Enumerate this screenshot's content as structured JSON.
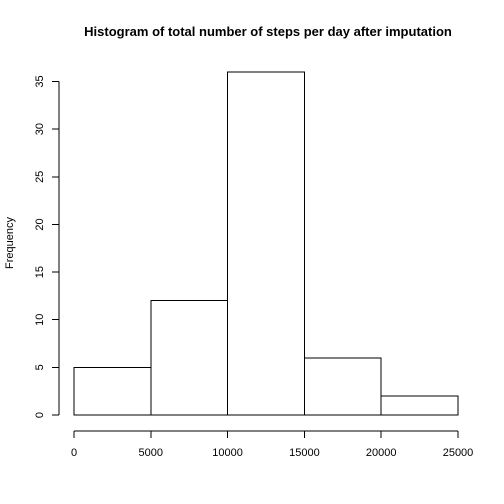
{
  "chart_data": {
    "type": "bar",
    "title": "Histogram of total number of steps per day after imputation",
    "xlabel": "",
    "ylabel": "Frequency",
    "bins": [
      {
        "from": 0,
        "to": 5000,
        "count": 5
      },
      {
        "from": 5000,
        "to": 10000,
        "count": 12
      },
      {
        "from": 10000,
        "to": 15000,
        "count": 36
      },
      {
        "from": 15000,
        "to": 20000,
        "count": 6
      },
      {
        "from": 20000,
        "to": 25000,
        "count": 2
      }
    ],
    "x_ticks": [
      "0",
      "5000",
      "10000",
      "15000",
      "20000",
      "25000"
    ],
    "y_ticks": [
      "0",
      "5",
      "10",
      "15",
      "20",
      "25",
      "30",
      "35"
    ],
    "xlim": [
      0,
      25000
    ],
    "ylim": [
      0,
      36
    ],
    "grid": false,
    "legend": "none"
  }
}
